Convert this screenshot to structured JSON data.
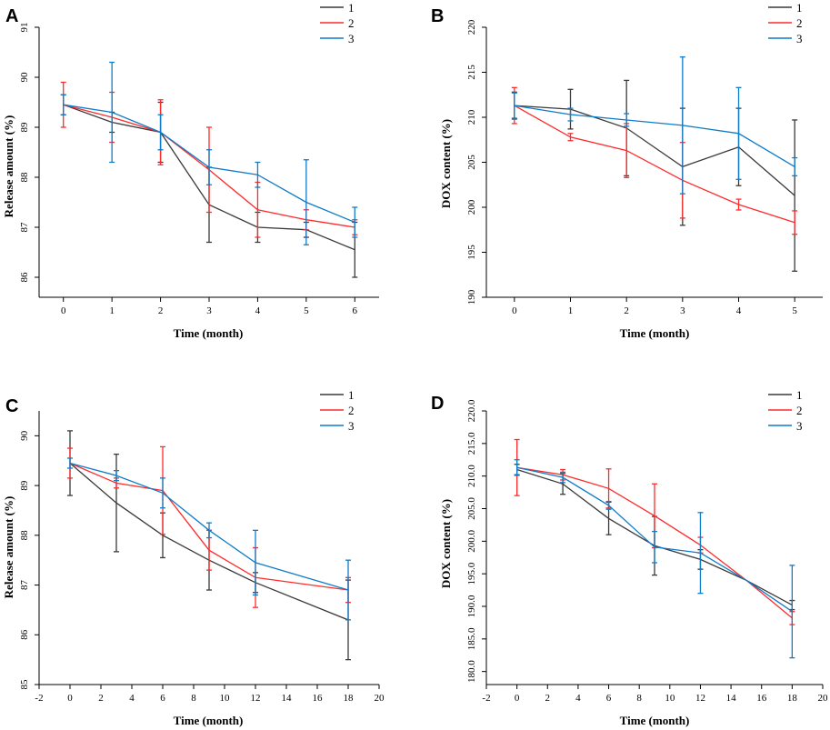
{
  "chart_data": [
    {
      "panel": "A",
      "type": "line",
      "xlabel": "Time (month)",
      "ylabel": "Release amount (%)",
      "xlim": [
        -0.5,
        6.5
      ],
      "ylim": [
        85.6,
        91
      ],
      "xticks": [
        0,
        1,
        2,
        3,
        4,
        5,
        6
      ],
      "xtick_labels": [
        "0",
        "1",
        "2",
        "3",
        "4",
        "5",
        "6"
      ],
      "yticks": [
        86,
        87,
        88,
        89,
        90,
        91
      ],
      "ytick_labels": [
        "86",
        "87",
        "88",
        "89",
        "90",
        "91"
      ],
      "legend_position": "top-right",
      "series": [
        {
          "name": "1",
          "color": "#3a3a3a",
          "x": [
            0,
            1,
            2,
            3,
            4,
            5,
            6
          ],
          "values": [
            89.45,
            89.1,
            88.9,
            87.45,
            87.0,
            86.95,
            86.55
          ],
          "errors": [
            0.2,
            0.2,
            0.6,
            0.75,
            0.3,
            0.15,
            0.55
          ]
        },
        {
          "name": "2",
          "color": "#ff2a2a",
          "x": [
            0,
            1,
            2,
            3,
            4,
            5,
            6
          ],
          "values": [
            89.45,
            89.2,
            88.9,
            88.15,
            87.35,
            87.15,
            87.0
          ],
          "errors": [
            0.45,
            0.5,
            0.65,
            0.85,
            0.55,
            0.2,
            0.15
          ]
        },
        {
          "name": "3",
          "color": "#0f7cc8",
          "x": [
            0,
            1,
            2,
            3,
            4,
            5,
            6
          ],
          "values": [
            89.45,
            89.3,
            88.9,
            88.2,
            88.05,
            87.5,
            87.1
          ],
          "errors": [
            0.2,
            1.0,
            0.35,
            0.35,
            0.25,
            0.85,
            0.3
          ]
        }
      ]
    },
    {
      "panel": "B",
      "type": "line",
      "xlabel": "Time (month)",
      "ylabel": "DOX content (%)",
      "xlim": [
        -0.5,
        5.5
      ],
      "ylim": [
        190,
        220
      ],
      "xticks": [
        0,
        1,
        2,
        3,
        4,
        5
      ],
      "xtick_labels": [
        "0",
        "1",
        "2",
        "3",
        "4",
        "5"
      ],
      "yticks": [
        190,
        195,
        200,
        205,
        210,
        215,
        220
      ],
      "ytick_labels": [
        "190",
        "195",
        "200",
        "205",
        "210",
        "215",
        "220"
      ],
      "legend_position": "top-right",
      "series": [
        {
          "name": "1",
          "color": "#3a3a3a",
          "x": [
            0,
            1,
            2,
            3,
            4,
            5
          ],
          "values": [
            211.3,
            210.9,
            208.8,
            204.5,
            206.7,
            201.3
          ],
          "errors": [
            1.5,
            2.2,
            5.3,
            6.5,
            4.3,
            8.4
          ]
        },
        {
          "name": "2",
          "color": "#ff2a2a",
          "x": [
            0,
            1,
            2,
            3,
            4,
            5
          ],
          "values": [
            211.3,
            207.8,
            206.3,
            203.0,
            200.3,
            198.3
          ],
          "errors": [
            2.0,
            0.4,
            3.0,
            4.2,
            0.6,
            1.3
          ]
        },
        {
          "name": "3",
          "color": "#0f7cc8",
          "x": [
            0,
            1,
            2,
            3,
            4,
            5
          ],
          "values": [
            211.3,
            210.3,
            209.7,
            209.1,
            208.2,
            204.5
          ],
          "errors": [
            1.4,
            0.7,
            0.7,
            7.6,
            5.1,
            1.0
          ]
        }
      ]
    },
    {
      "panel": "C",
      "type": "line",
      "xlabel": "Time (month)",
      "ylabel": "Release amount (%)",
      "xlim": [
        -2,
        20
      ],
      "ylim": [
        85,
        90.5
      ],
      "xticks": [
        -2,
        0,
        2,
        4,
        6,
        8,
        10,
        12,
        14,
        16,
        18,
        20
      ],
      "xtick_labels": [
        "-2",
        "0",
        "2",
        "4",
        "6",
        "8",
        "10",
        "12",
        "14",
        "16",
        "18",
        "20"
      ],
      "yticks": [
        85,
        86,
        87,
        88,
        89,
        90
      ],
      "ytick_labels": [
        "85",
        "86",
        "87",
        "88",
        "89",
        "90"
      ],
      "legend_position": "top-right",
      "series": [
        {
          "name": "1",
          "color": "#3a3a3a",
          "x": [
            0,
            3,
            6,
            9,
            12,
            18
          ],
          "values": [
            89.45,
            88.65,
            88.0,
            87.5,
            87.05,
            86.3
          ],
          "errors": [
            0.65,
            0.98,
            0.45,
            0.6,
            0.2,
            0.8
          ]
        },
        {
          "name": "2",
          "color": "#ff2a2a",
          "x": [
            0,
            3,
            6,
            9,
            12,
            18
          ],
          "values": [
            89.45,
            89.05,
            88.9,
            87.7,
            87.15,
            86.9
          ],
          "errors": [
            0.3,
            0.1,
            0.88,
            0.4,
            0.6,
            0.25
          ]
        },
        {
          "name": "3",
          "color": "#0f7cc8",
          "x": [
            0,
            3,
            6,
            9,
            12,
            18
          ],
          "values": [
            89.45,
            89.2,
            88.85,
            88.1,
            87.45,
            86.9
          ],
          "errors": [
            0.1,
            0.1,
            0.3,
            0.15,
            0.65,
            0.6
          ]
        }
      ]
    },
    {
      "panel": "D",
      "type": "line",
      "xlabel": "Time (month)",
      "ylabel": "DOX content (%)",
      "xlim": [
        -2,
        20
      ],
      "ylim": [
        178,
        220
      ],
      "xticks": [
        -2,
        0,
        2,
        4,
        6,
        8,
        10,
        12,
        14,
        16,
        18,
        20
      ],
      "xtick_labels": [
        "-2",
        "0",
        "2",
        "4",
        "6",
        "8",
        "10",
        "12",
        "14",
        "16",
        "18",
        "20"
      ],
      "yticks": [
        180,
        185,
        190,
        195,
        200,
        205,
        210,
        215,
        220
      ],
      "ytick_labels": [
        "180.0",
        "185.0",
        "190.0",
        "195.0",
        "200.0",
        "205.0",
        "210.0",
        "215.0",
        "220.0"
      ],
      "legend_position": "top-right",
      "series": [
        {
          "name": "1",
          "color": "#3a3a3a",
          "x": [
            0,
            3,
            6,
            9,
            12,
            15,
            18
          ],
          "values": [
            211.0,
            208.8,
            203.5,
            199.3,
            197.2,
            194.0,
            190.2
          ],
          "errors": [
            0.8,
            1.6,
            2.5,
            4.5,
            1.5,
            0,
            0.7
          ]
        },
        {
          "name": "2",
          "color": "#ff2a2a",
          "x": [
            0,
            3,
            6,
            9,
            12,
            15,
            18
          ],
          "values": [
            211.3,
            210.2,
            208.1,
            203.9,
            199.4,
            194.0,
            188.2
          ],
          "errors": [
            4.3,
            0.8,
            3.0,
            4.9,
            1.2,
            0,
            1.0
          ]
        },
        {
          "name": "3",
          "color": "#0f7cc8",
          "x": [
            0,
            3,
            6,
            9,
            12,
            15,
            18
          ],
          "values": [
            211.3,
            209.8,
            205.5,
            199.1,
            198.2,
            194.0,
            189.2
          ],
          "errors": [
            1.2,
            0.8,
            0.6,
            2.4,
            6.2,
            0,
            7.1
          ]
        }
      ]
    }
  ]
}
